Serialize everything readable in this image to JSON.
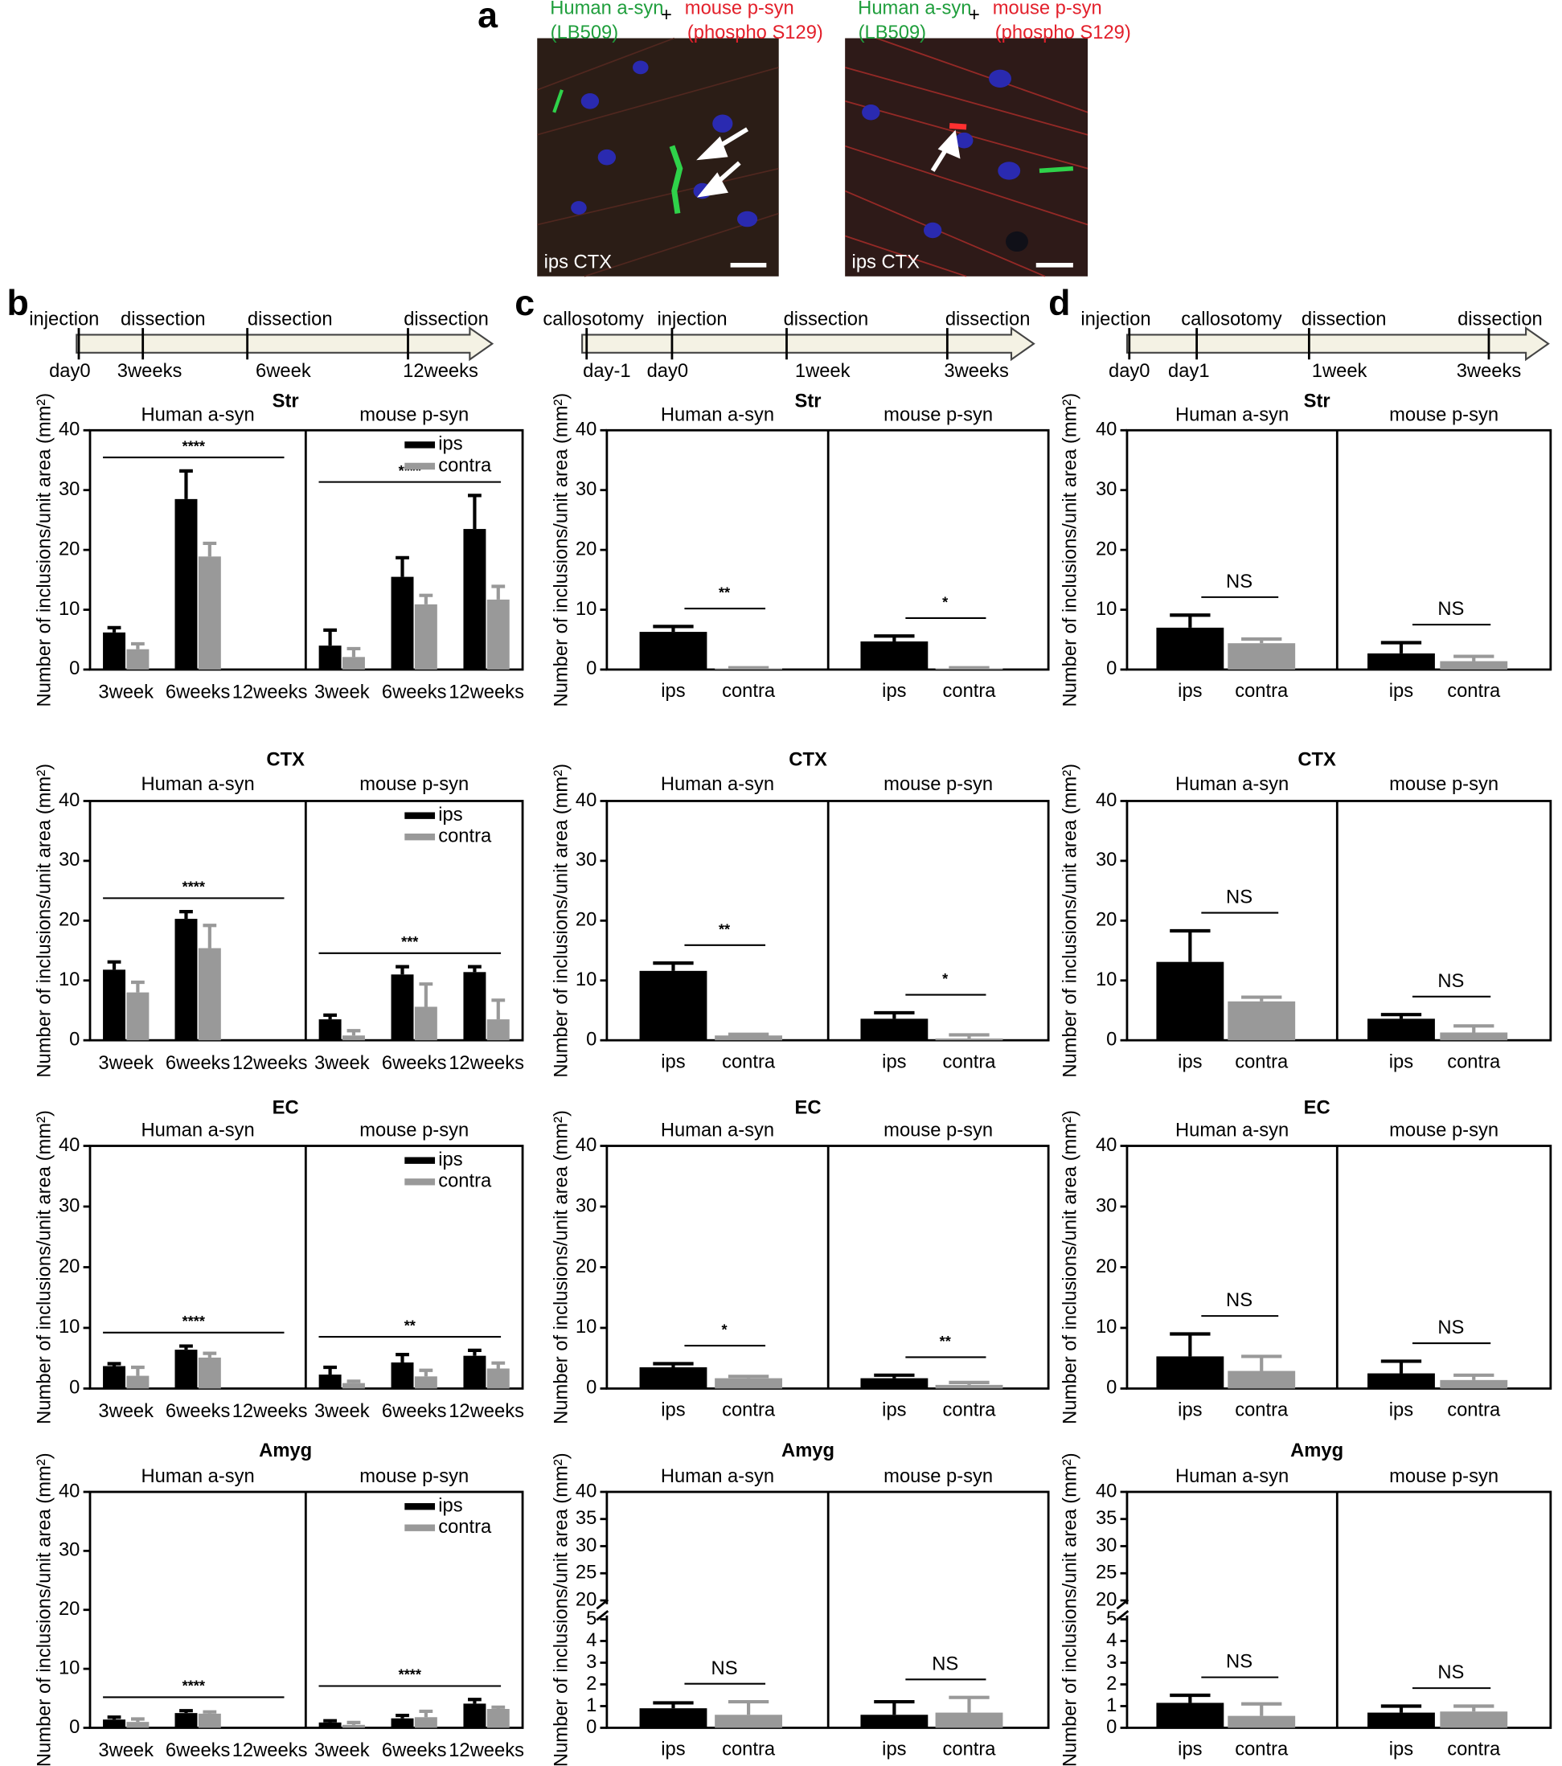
{
  "panel_a": {
    "label": "a",
    "colors": {
      "green": "#1f9e3c",
      "red": "#e3202b"
    },
    "images": [
      {
        "green_label": "Human a-syn",
        "green_sublabel": "(LB509)",
        "plus": "+",
        "red_label": "mouse p-syn",
        "red_sublabel": "(phospho S129)",
        "caption": "ips CTX"
      },
      {
        "green_label": "Human a-syn",
        "green_sublabel": "(LB509)",
        "plus": "+",
        "red_label": "mouse p-syn",
        "red_sublabel": "(phospho S129)",
        "caption": "ips CTX"
      }
    ]
  },
  "timelines": [
    {
      "panel": "b",
      "events": [
        "injection",
        "dissection",
        "dissection",
        "dissection"
      ],
      "times": [
        "day0",
        "3weeks",
        "6week",
        "12weeks"
      ]
    },
    {
      "panel": "c",
      "events": [
        "callosotomy",
        "injection",
        "dissection",
        "dissection"
      ],
      "times": [
        "day-1",
        "day0",
        "1week",
        "3weeks"
      ]
    },
    {
      "panel": "d",
      "events": [
        "injection",
        "callosotomy",
        "dissection",
        "dissection"
      ],
      "times": [
        "day0",
        "day1",
        "1week",
        "3weeks"
      ]
    }
  ],
  "chart_data": [
    {
      "type": "bar",
      "title": "Str",
      "y_label": "Number of inclusions/unit area (mm²)",
      "ylim": [
        0,
        40
      ],
      "yticks": [
        0,
        10,
        20,
        30,
        40
      ],
      "legend": true,
      "series": [
        {
          "name": "ips",
          "color": "#000000"
        },
        {
          "name": "contra",
          "color": "#999999"
        }
      ],
      "groups": [
        {
          "name": "Human a-syn",
          "categories": [
            "3week",
            "6weeks",
            "12weeks"
          ],
          "values": [
            [
              6.2,
              28.5,
              null
            ],
            [
              3.4,
              18.9,
              null
            ]
          ],
          "errors": [
            [
              0.8,
              4.7,
              null
            ],
            [
              0.9,
              2.2,
              null
            ]
          ],
          "significance": "****"
        },
        {
          "name": "mouse p-syn",
          "categories": [
            "3week",
            "6weeks",
            "12weeks"
          ],
          "values": [
            [
              4.0,
              15.5,
              23.5
            ],
            [
              2.1,
              10.9,
              11.7
            ]
          ],
          "errors": [
            [
              2.6,
              3.2,
              5.6
            ],
            [
              1.4,
              1.5,
              2.2
            ]
          ],
          "significance": "****"
        }
      ]
    },
    {
      "type": "bar",
      "title": "Str",
      "y_label": "Number of inclusions/unit area (mm²)",
      "ylim": [
        0,
        40
      ],
      "yticks": [
        0,
        10,
        20,
        30,
        40
      ],
      "colors": [
        "#000000",
        "#999999"
      ],
      "groups": [
        {
          "name": "Human a-syn",
          "categories": [
            "ips",
            "contra"
          ],
          "values": [
            6.3,
            0.2
          ],
          "errors": [
            0.9,
            0.1
          ],
          "significance": "**"
        },
        {
          "name": "mouse p-syn",
          "categories": [
            "ips",
            "contra"
          ],
          "values": [
            4.7,
            0.2
          ],
          "errors": [
            0.9,
            0.1
          ],
          "significance": "*"
        }
      ]
    },
    {
      "type": "bar",
      "title": "Str",
      "y_label": "Number of inclusions/unit area (mm²)",
      "ylim": [
        0,
        40
      ],
      "yticks": [
        0,
        10,
        20,
        30,
        40
      ],
      "colors": [
        "#000000",
        "#999999"
      ],
      "groups": [
        {
          "name": "Human a-syn",
          "categories": [
            "ips",
            "contra"
          ],
          "values": [
            7.0,
            4.4
          ],
          "errors": [
            2.1,
            0.7
          ],
          "significance": "NS"
        },
        {
          "name": "mouse p-syn",
          "categories": [
            "ips",
            "contra"
          ],
          "values": [
            2.7,
            1.4
          ],
          "errors": [
            1.8,
            0.8
          ],
          "significance": "NS"
        }
      ]
    },
    {
      "type": "bar",
      "title": "CTX",
      "y_label": "Number of inclusions/unit area (mm²)",
      "ylim": [
        0,
        40
      ],
      "yticks": [
        0,
        10,
        20,
        30,
        40
      ],
      "legend": true,
      "series": [
        {
          "name": "ips",
          "color": "#000000"
        },
        {
          "name": "contra",
          "color": "#999999"
        }
      ],
      "groups": [
        {
          "name": "Human a-syn",
          "categories": [
            "3week",
            "6weeks",
            "12weeks"
          ],
          "values": [
            [
              11.8,
              20.3,
              null
            ],
            [
              8.0,
              15.4,
              null
            ]
          ],
          "errors": [
            [
              1.3,
              1.2,
              null
            ],
            [
              1.7,
              3.8,
              null
            ]
          ],
          "significance": "****"
        },
        {
          "name": "mouse p-syn",
          "categories": [
            "3week",
            "6weeks",
            "12weeks"
          ],
          "values": [
            [
              3.5,
              11.0,
              11.4
            ],
            [
              0.8,
              5.6,
              3.5
            ]
          ],
          "errors": [
            [
              0.7,
              1.3,
              0.9
            ],
            [
              0.8,
              3.8,
              3.2
            ]
          ],
          "significance": "***"
        }
      ]
    },
    {
      "type": "bar",
      "title": "CTX",
      "y_label": "Number of inclusions/unit area (mm²)",
      "ylim": [
        0,
        40
      ],
      "yticks": [
        0,
        10,
        20,
        30,
        40
      ],
      "colors": [
        "#000000",
        "#999999"
      ],
      "groups": [
        {
          "name": "Human a-syn",
          "categories": [
            "ips",
            "contra"
          ],
          "values": [
            11.6,
            0.8
          ],
          "errors": [
            1.3,
            0.2
          ],
          "significance": "**"
        },
        {
          "name": "mouse p-syn",
          "categories": [
            "ips",
            "contra"
          ],
          "values": [
            3.6,
            0.3
          ],
          "errors": [
            1.0,
            0.6
          ],
          "significance": "*"
        }
      ]
    },
    {
      "type": "bar",
      "title": "CTX",
      "y_label": "Number of inclusions/unit area (mm²)",
      "ylim": [
        0,
        40
      ],
      "yticks": [
        0,
        10,
        20,
        30,
        40
      ],
      "colors": [
        "#000000",
        "#999999"
      ],
      "groups": [
        {
          "name": "Human a-syn",
          "categories": [
            "ips",
            "contra"
          ],
          "values": [
            13.1,
            6.5
          ],
          "errors": [
            5.2,
            0.7
          ],
          "significance": "NS"
        },
        {
          "name": "mouse p-syn",
          "categories": [
            "ips",
            "contra"
          ],
          "values": [
            3.6,
            1.3
          ],
          "errors": [
            0.7,
            1.1
          ],
          "significance": "NS"
        }
      ]
    },
    {
      "type": "bar",
      "title": "EC",
      "y_label": "Number of inclusions/unit area (mm²)",
      "ylim": [
        0,
        40
      ],
      "yticks": [
        0,
        10,
        20,
        30,
        40
      ],
      "legend": true,
      "series": [
        {
          "name": "ips",
          "color": "#000000"
        },
        {
          "name": "contra",
          "color": "#999999"
        }
      ],
      "groups": [
        {
          "name": "Human a-syn",
          "categories": [
            "3week",
            "6weeks",
            "12weeks"
          ],
          "values": [
            [
              3.7,
              6.4,
              null
            ],
            [
              2.1,
              5.1,
              null
            ]
          ],
          "errors": [
            [
              0.4,
              0.6,
              null
            ],
            [
              1.4,
              0.7,
              null
            ]
          ],
          "significance": "****"
        },
        {
          "name": "mouse p-syn",
          "categories": [
            "3week",
            "6weeks",
            "12weeks"
          ],
          "values": [
            [
              2.3,
              4.3,
              5.4
            ],
            [
              0.9,
              2.0,
              3.3
            ]
          ],
          "errors": [
            [
              1.2,
              1.3,
              0.9
            ],
            [
              0.3,
              1.0,
              0.9
            ]
          ],
          "significance": "**"
        }
      ]
    },
    {
      "type": "bar",
      "title": "EC",
      "y_label": "Number of inclusions/unit area (mm²)",
      "ylim": [
        0,
        40
      ],
      "yticks": [
        0,
        10,
        20,
        30,
        40
      ],
      "colors": [
        "#000000",
        "#999999"
      ],
      "groups": [
        {
          "name": "Human a-syn",
          "categories": [
            "ips",
            "contra"
          ],
          "values": [
            3.5,
            1.7
          ],
          "errors": [
            0.6,
            0.3
          ],
          "significance": "*"
        },
        {
          "name": "mouse p-syn",
          "categories": [
            "ips",
            "contra"
          ],
          "values": [
            1.7,
            0.6
          ],
          "errors": [
            0.5,
            0.4
          ],
          "significance": "**"
        }
      ]
    },
    {
      "type": "bar",
      "title": "EC",
      "y_label": "Number of inclusions/unit area (mm²)",
      "ylim": [
        0,
        40
      ],
      "yticks": [
        0,
        10,
        20,
        30,
        40
      ],
      "colors": [
        "#000000",
        "#999999"
      ],
      "groups": [
        {
          "name": "Human a-syn",
          "categories": [
            "ips",
            "contra"
          ],
          "values": [
            5.3,
            2.9
          ],
          "errors": [
            3.7,
            2.4
          ],
          "significance": "NS"
        },
        {
          "name": "mouse p-syn",
          "categories": [
            "ips",
            "contra"
          ],
          "values": [
            2.5,
            1.4
          ],
          "errors": [
            2.0,
            0.8
          ],
          "significance": "NS"
        }
      ]
    },
    {
      "type": "bar",
      "title": "Amyg",
      "y_label": "Number of inclusions/unit area (mm²)",
      "ylim": [
        0,
        40
      ],
      "yticks": [
        0,
        10,
        20,
        30,
        40
      ],
      "legend": true,
      "series": [
        {
          "name": "ips",
          "color": "#000000"
        },
        {
          "name": "contra",
          "color": "#999999"
        }
      ],
      "groups": [
        {
          "name": "Human a-syn",
          "categories": [
            "3week",
            "6weeks",
            "12weeks"
          ],
          "values": [
            [
              1.4,
              2.5,
              null
            ],
            [
              1.0,
              2.4,
              null
            ]
          ],
          "errors": [
            [
              0.4,
              0.4,
              null
            ],
            [
              0.5,
              0.3,
              null
            ]
          ],
          "significance": "****"
        },
        {
          "name": "mouse p-syn",
          "categories": [
            "3week",
            "6weeks",
            "12weeks"
          ],
          "values": [
            [
              0.9,
              1.6,
              4.1
            ],
            [
              0.5,
              1.8,
              3.2
            ]
          ],
          "errors": [
            [
              0.3,
              0.5,
              0.7
            ],
            [
              0.4,
              1.0,
              0.3
            ]
          ],
          "significance": "****"
        }
      ]
    },
    {
      "type": "bar",
      "title": "Amyg",
      "y_label": "Number of inclusions/unit area (mm²)",
      "ylim": [
        0,
        40
      ],
      "yticks": [
        0,
        1,
        2,
        3,
        4,
        5,
        20,
        25,
        30,
        35,
        40
      ],
      "axis_break": [
        5,
        20
      ],
      "colors": [
        "#000000",
        "#999999"
      ],
      "groups": [
        {
          "name": "Human a-syn",
          "categories": [
            "ips",
            "contra"
          ],
          "values": [
            0.9,
            0.6
          ],
          "errors": [
            0.25,
            0.6
          ],
          "significance": "NS"
        },
        {
          "name": "mouse p-syn",
          "categories": [
            "ips",
            "contra"
          ],
          "values": [
            0.6,
            0.7
          ],
          "errors": [
            0.6,
            0.7
          ],
          "significance": "NS"
        }
      ]
    },
    {
      "type": "bar",
      "title": "Amyg",
      "y_label": "Number of inclusions/unit area (mm²)",
      "ylim": [
        0,
        40
      ],
      "yticks": [
        0,
        1,
        2,
        3,
        4,
        5,
        20,
        25,
        30,
        35,
        40
      ],
      "axis_break": [
        5,
        20
      ],
      "colors": [
        "#000000",
        "#999999"
      ],
      "groups": [
        {
          "name": "Human a-syn",
          "categories": [
            "ips",
            "contra"
          ],
          "values": [
            1.15,
            0.55
          ],
          "errors": [
            0.35,
            0.55
          ],
          "significance": "NS"
        },
        {
          "name": "mouse p-syn",
          "categories": [
            "ips",
            "contra"
          ],
          "values": [
            0.7,
            0.75
          ],
          "errors": [
            0.3,
            0.25
          ],
          "significance": "NS"
        }
      ]
    }
  ]
}
